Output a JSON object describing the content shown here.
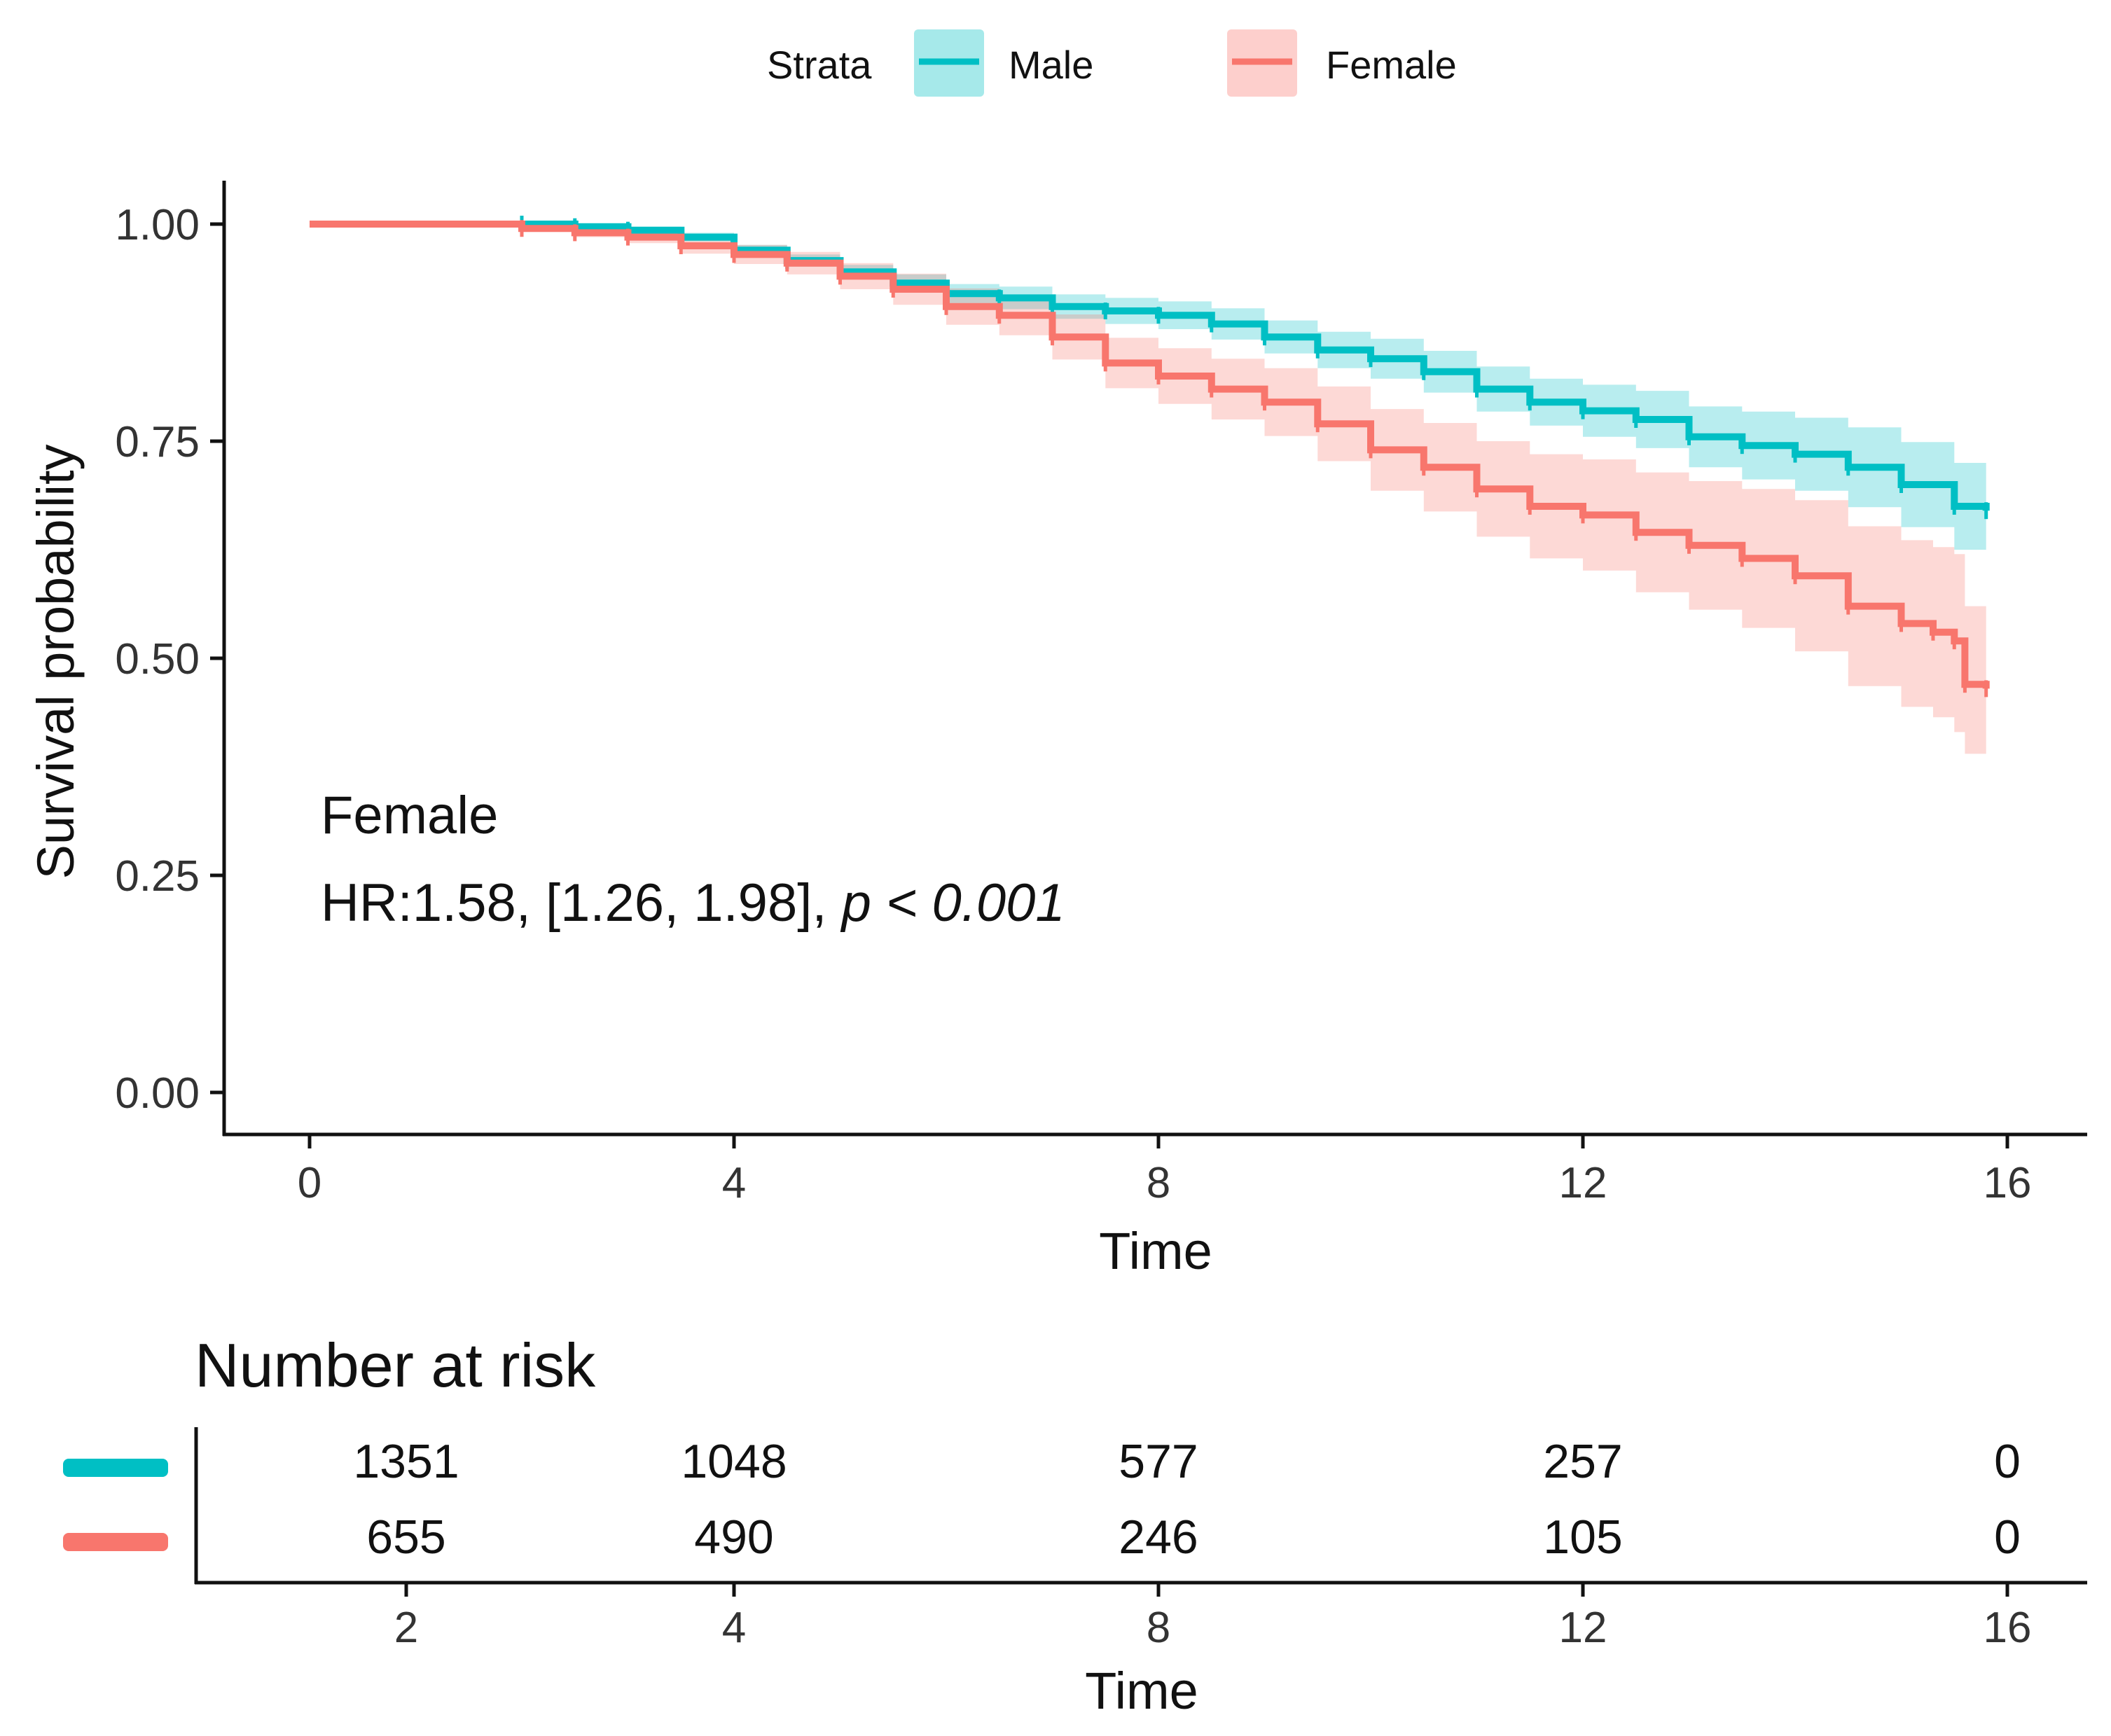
{
  "chart_data": {
    "type": "line",
    "subtype": "kaplan-meier",
    "legend": {
      "title": "Strata",
      "position": "top"
    },
    "xlabel": "Time",
    "ylabel": "Survival probability",
    "xlim": [
      0,
      16
    ],
    "ylim": [
      0,
      1
    ],
    "x_ticks": [
      0,
      4,
      8,
      12,
      16
    ],
    "x_tick_labels": [
      "0",
      "4",
      "8",
      "12",
      "16"
    ],
    "y_ticks": [
      0,
      0.25,
      0.5,
      0.75,
      1.0
    ],
    "y_tick_labels": [
      "0.00",
      "0.25",
      "0.50",
      "0.75",
      "1.00"
    ],
    "series": [
      {
        "name": "Male",
        "color": "#00BFC4",
        "band_color": "#00BFC4",
        "x": [
          0,
          2.0,
          2.5,
          3.0,
          3.5,
          4.0,
          4.5,
          5.0,
          5.5,
          6.0,
          6.5,
          7.0,
          7.5,
          8.0,
          8.5,
          9.0,
          9.5,
          10.0,
          10.5,
          11.0,
          11.5,
          12.0,
          12.5,
          13.0,
          13.5,
          14.0,
          14.5,
          15.0,
          15.5,
          15.8
        ],
        "y": [
          1.0,
          1.0,
          0.997,
          0.993,
          0.985,
          0.97,
          0.958,
          0.945,
          0.932,
          0.92,
          0.915,
          0.905,
          0.9,
          0.895,
          0.885,
          0.87,
          0.855,
          0.845,
          0.83,
          0.81,
          0.795,
          0.785,
          0.775,
          0.755,
          0.745,
          0.735,
          0.72,
          0.7,
          0.675,
          0.67
        ],
        "lower": [
          1.0,
          1.0,
          0.995,
          0.989,
          0.98,
          0.964,
          0.951,
          0.937,
          0.922,
          0.909,
          0.902,
          0.891,
          0.885,
          0.879,
          0.867,
          0.851,
          0.834,
          0.822,
          0.806,
          0.784,
          0.768,
          0.755,
          0.742,
          0.72,
          0.706,
          0.693,
          0.674,
          0.651,
          0.625,
          0.622
        ],
        "upper": [
          1.0,
          1.0,
          0.999,
          0.997,
          0.99,
          0.976,
          0.965,
          0.953,
          0.942,
          0.931,
          0.928,
          0.919,
          0.915,
          0.911,
          0.903,
          0.889,
          0.876,
          0.868,
          0.854,
          0.836,
          0.822,
          0.815,
          0.808,
          0.79,
          0.784,
          0.777,
          0.766,
          0.749,
          0.725,
          0.718
        ]
      },
      {
        "name": "Female",
        "color": "#F8766D",
        "band_color": "#F8766D",
        "x": [
          0,
          2.0,
          2.5,
          3.0,
          3.5,
          4.0,
          4.5,
          5.0,
          5.5,
          6.0,
          6.5,
          7.0,
          7.5,
          8.0,
          8.5,
          9.0,
          9.5,
          10.0,
          10.5,
          11.0,
          11.5,
          12.0,
          12.5,
          13.0,
          13.5,
          14.0,
          14.5,
          15.0,
          15.3,
          15.5,
          15.6,
          15.8
        ],
        "y": [
          1.0,
          0.995,
          0.99,
          0.985,
          0.975,
          0.965,
          0.955,
          0.94,
          0.925,
          0.905,
          0.895,
          0.87,
          0.84,
          0.825,
          0.81,
          0.795,
          0.77,
          0.74,
          0.72,
          0.695,
          0.675,
          0.665,
          0.645,
          0.63,
          0.615,
          0.595,
          0.56,
          0.54,
          0.53,
          0.52,
          0.47,
          0.465
        ],
        "lower": [
          1.0,
          0.992,
          0.985,
          0.978,
          0.966,
          0.954,
          0.942,
          0.925,
          0.907,
          0.884,
          0.872,
          0.844,
          0.811,
          0.793,
          0.775,
          0.756,
          0.727,
          0.693,
          0.669,
          0.64,
          0.615,
          0.601,
          0.576,
          0.556,
          0.535,
          0.508,
          0.468,
          0.444,
          0.432,
          0.415,
          0.39,
          0.385
        ],
        "upper": [
          1.0,
          0.998,
          0.995,
          0.992,
          0.984,
          0.976,
          0.968,
          0.955,
          0.943,
          0.926,
          0.918,
          0.896,
          0.869,
          0.857,
          0.845,
          0.834,
          0.813,
          0.787,
          0.771,
          0.75,
          0.735,
          0.729,
          0.714,
          0.704,
          0.695,
          0.682,
          0.652,
          0.636,
          0.628,
          0.62,
          0.56,
          0.56
        ]
      }
    ],
    "annotation": {
      "group": "Female",
      "hr_text": "HR:1.58, [1.26, 1.98], ",
      "p_text": "p < 0.001"
    },
    "risk_table": {
      "title": "Number at risk",
      "xlabel": "Time",
      "time_points": [
        2,
        4,
        8,
        12,
        16
      ],
      "x_tick_labels": [
        "2",
        "4",
        "8",
        "12",
        "16"
      ],
      "rows": [
        {
          "name": "Male",
          "color": "#00BFC4",
          "values": [
            "1351",
            "1048",
            "577",
            "257",
            "0"
          ]
        },
        {
          "name": "Female",
          "color": "#F8766D",
          "values": [
            "655",
            "490",
            "246",
            "105",
            "0"
          ]
        }
      ]
    }
  }
}
